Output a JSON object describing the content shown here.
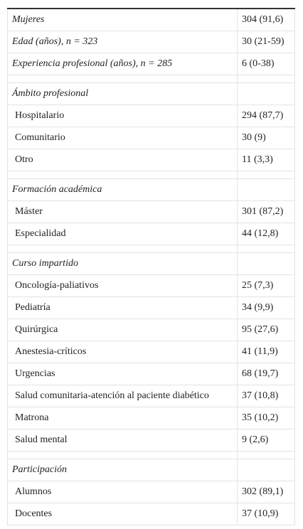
{
  "table": {
    "groups": [
      {
        "rows": [
          [
            "Mujeres",
            "304 (91,6)"
          ],
          [
            "Edad (años), n = 323",
            "30 (21-59)"
          ],
          [
            "Experiencia profesional (años), n = 285",
            "6 (0-38)"
          ]
        ]
      },
      {
        "heading": "Ámbito profesional",
        "rows": [
          [
            "Hospitalario",
            "294 (87,7)"
          ],
          [
            "Comunitario",
            "30 (9)"
          ],
          [
            "Otro",
            "11 (3,3)"
          ]
        ]
      },
      {
        "heading": "Formación académica",
        "rows": [
          [
            "Máster",
            "301 (87,2)"
          ],
          [
            "Especialidad",
            "44 (12,8)"
          ]
        ]
      },
      {
        "heading": "Curso impartido",
        "rows": [
          [
            "Oncología-paliativos",
            "25 (7,3)"
          ],
          [
            "Pediatría",
            "34 (9,9)"
          ],
          [
            "Quirúrgica",
            "95 (27,6)"
          ],
          [
            "Anestesia-críticos",
            "41 (11,9)"
          ],
          [
            "Urgencias",
            "68 (19,7)"
          ],
          [
            "Salud comunitaria-atención al paciente diabético",
            "37 (10,8)"
          ],
          [
            "Matrona",
            "35 (10,2)"
          ],
          [
            "Salud mental",
            "9 (2,6)"
          ]
        ]
      },
      {
        "heading": "Participación",
        "rows": [
          [
            "Alumnos",
            "302 (89,1)"
          ],
          [
            "Docentes",
            "37 (10,9)"
          ]
        ]
      }
    ]
  }
}
